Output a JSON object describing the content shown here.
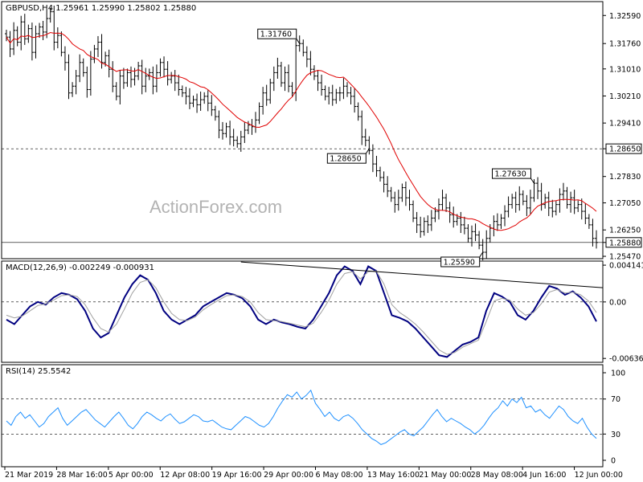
{
  "chart_data": [
    {
      "type": "candlestick",
      "title": "GBPUSD,H4",
      "ohlc_readout": [
        "1.25961",
        "1.25990",
        "1.25802",
        "1.25880"
      ],
      "ylim": [
        1.254,
        1.33
      ],
      "yticks": [
        "1.32590",
        "1.31760",
        "1.31010",
        "1.30210",
        "1.29410",
        "1.28650",
        "1.27830",
        "1.27050",
        "1.26250",
        "1.25880",
        "1.25470"
      ],
      "highlighted_levels": [
        "1.28650",
        "1.25880"
      ],
      "annotations": [
        "1.31760",
        "1.28650",
        "1.27630",
        "1.25590"
      ],
      "ma_color": "#e00000",
      "bar_color": "#000000",
      "close_series": [
        1.3195,
        1.316,
        1.3215,
        1.318,
        1.324,
        1.319,
        1.322,
        1.315,
        1.3205,
        1.3225,
        1.321,
        1.325,
        1.327,
        1.318,
        1.32,
        1.315,
        1.312,
        1.303,
        1.305,
        1.308,
        1.312,
        1.309,
        1.304,
        1.313,
        1.316,
        1.318,
        1.312,
        1.314,
        1.31,
        1.305,
        1.302,
        1.308,
        1.306,
        1.309,
        1.307,
        1.308,
        1.311,
        1.305,
        1.308,
        1.309,
        1.305,
        1.309,
        1.312,
        1.31,
        1.307,
        1.308,
        1.306,
        1.304,
        1.303,
        1.302,
        1.3,
        1.301,
        1.2995,
        1.301,
        1.302,
        1.3,
        1.298,
        1.296,
        1.292,
        1.291,
        1.293,
        1.29,
        1.289,
        1.288,
        1.29,
        1.292,
        1.2935,
        1.293,
        1.295,
        1.299,
        1.303,
        1.301,
        1.306,
        1.309,
        1.311,
        1.306,
        1.309,
        1.305,
        1.303,
        1.317,
        1.3176,
        1.315,
        1.313,
        1.31,
        1.308,
        1.306,
        1.304,
        1.302,
        1.303,
        1.301,
        1.303,
        1.303,
        1.305,
        1.303,
        1.302,
        1.299,
        1.296,
        1.29,
        1.289,
        1.286,
        1.282,
        1.28,
        1.278,
        1.276,
        1.274,
        1.272,
        1.27,
        1.272,
        1.275,
        1.272,
        1.27,
        1.266,
        1.264,
        1.262,
        1.265,
        1.264,
        1.266,
        1.268,
        1.27,
        1.272,
        1.269,
        1.267,
        1.265,
        1.266,
        1.264,
        1.263,
        1.26,
        1.262,
        1.261,
        1.258,
        1.2559,
        1.26,
        1.263,
        1.265,
        1.264,
        1.266,
        1.268,
        1.27,
        1.272,
        1.27,
        1.273,
        1.271,
        1.269,
        1.272,
        1.2763,
        1.274,
        1.27,
        1.272,
        1.269,
        1.268,
        1.27,
        1.273,
        1.274,
        1.27,
        1.272,
        1.269,
        1.27,
        1.268,
        1.266,
        1.264,
        1.26,
        1.2588
      ]
    },
    {
      "type": "line",
      "title": "MACD(12,26,9)",
      "readout": [
        "-0.002249",
        "-0.000931"
      ],
      "ylim": [
        -0.0068,
        0.0046
      ],
      "yticks": [
        "0.004141",
        "0.00",
        "-0.006365"
      ],
      "series": [
        {
          "color": "#000080",
          "values": [
            -0.002,
            -0.0025,
            -0.0015,
            -0.0005,
            0.0,
            -0.0003,
            0.0005,
            0.001,
            0.0008,
            0.0003,
            -0.001,
            -0.003,
            -0.004,
            -0.0035,
            -0.0015,
            0.0005,
            0.002,
            0.003,
            0.0025,
            0.001,
            -0.001,
            -0.002,
            -0.0025,
            -0.002,
            -0.0015,
            -0.0005,
            0.0,
            0.0005,
            0.001,
            0.0008,
            0.0004,
            -0.0005,
            -0.002,
            -0.0025,
            -0.002,
            -0.0023,
            -0.0025,
            -0.0028,
            -0.003,
            -0.002,
            -0.0005,
            0.001,
            0.003,
            0.004,
            0.0035,
            0.002,
            0.004,
            0.0035,
            0.001,
            -0.0015,
            -0.0018,
            -0.0022,
            -0.003,
            -0.004,
            -0.005,
            -0.006,
            -0.0062,
            -0.0055,
            -0.0048,
            -0.0045,
            -0.004,
            -0.001,
            0.001,
            0.0006,
            0.0,
            -0.0015,
            -0.002,
            -0.001,
            0.0005,
            0.0018,
            0.0015,
            0.0008,
            0.0012,
            0.0005,
            -0.0005,
            -0.0022
          ]
        },
        {
          "color": "#a0a0a0",
          "values": [
            -0.0015,
            -0.0018,
            -0.0016,
            -0.001,
            -0.0004,
            -0.0002,
            0.0002,
            0.0007,
            0.0008,
            0.0006,
            -0.0003,
            -0.0018,
            -0.003,
            -0.0034,
            -0.0025,
            -0.0008,
            0.001,
            0.0022,
            0.0025,
            0.0016,
            0.0,
            -0.0013,
            -0.002,
            -0.0021,
            -0.0017,
            -0.0009,
            -0.0003,
            0.0002,
            0.0007,
            0.0008,
            0.0006,
            0.0,
            -0.0012,
            -0.002,
            -0.0021,
            -0.0022,
            -0.0024,
            -0.0026,
            -0.0028,
            -0.0024,
            -0.0012,
            0.0002,
            0.002,
            0.0032,
            0.0034,
            0.0026,
            0.0034,
            0.0035,
            0.002,
            -0.0003,
            -0.0012,
            -0.0018,
            -0.0025,
            -0.0034,
            -0.0044,
            -0.0054,
            -0.0059,
            -0.0057,
            -0.0051,
            -0.0047,
            -0.0043,
            -0.0022,
            0.0001,
            0.0004,
            0.0002,
            -0.0008,
            -0.0015,
            -0.0012,
            -0.0002,
            0.0011,
            0.0014,
            0.001,
            0.0011,
            0.0008,
            0.0001,
            -0.0012
          ]
        }
      ],
      "trendline_color": "#000000"
    },
    {
      "type": "line",
      "title": "RSI(14)",
      "readout": "25.5542",
      "ylim": [
        0,
        100
      ],
      "yticks": [
        "100",
        "70",
        "30",
        "0"
      ],
      "levels": [
        70,
        30
      ],
      "series": [
        {
          "color": "#1e90ff",
          "values": [
            45,
            40,
            50,
            55,
            48,
            52,
            45,
            38,
            42,
            50,
            55,
            60,
            48,
            40,
            45,
            50,
            55,
            58,
            52,
            46,
            42,
            38,
            44,
            50,
            55,
            48,
            40,
            36,
            42,
            50,
            55,
            52,
            48,
            45,
            50,
            53,
            47,
            42,
            44,
            48,
            52,
            50,
            45,
            44,
            46,
            42,
            38,
            36,
            35,
            40,
            45,
            50,
            48,
            44,
            40,
            38,
            42,
            50,
            60,
            68,
            75,
            72,
            78,
            70,
            74,
            80,
            65,
            58,
            50,
            55,
            48,
            45,
            50,
            52,
            48,
            42,
            35,
            30,
            25,
            22,
            18,
            20,
            24,
            28,
            32,
            35,
            30,
            28,
            33,
            38,
            45,
            52,
            58,
            50,
            44,
            48,
            45,
            42,
            38,
            35,
            30,
            34,
            40,
            48,
            55,
            60,
            68,
            62,
            70,
            66,
            72,
            60,
            62,
            55,
            58,
            52,
            48,
            55,
            62,
            58,
            50,
            45,
            42,
            48,
            38,
            30,
            25
          ]
        }
      ]
    }
  ],
  "time_axis": [
    "21 Mar 2019",
    "28 Mar 16:00",
    "5 Apr 00:00",
    "12 Apr 08:00",
    "19 Apr 16:00",
    "29 Apr 00:00",
    "6 May 08:00",
    "13 May 16:00",
    "21 May 00:00",
    "28 May 08:00",
    "4 Jun 16:00",
    "12 Jun 00:00"
  ],
  "watermark": "ActionForex.com"
}
